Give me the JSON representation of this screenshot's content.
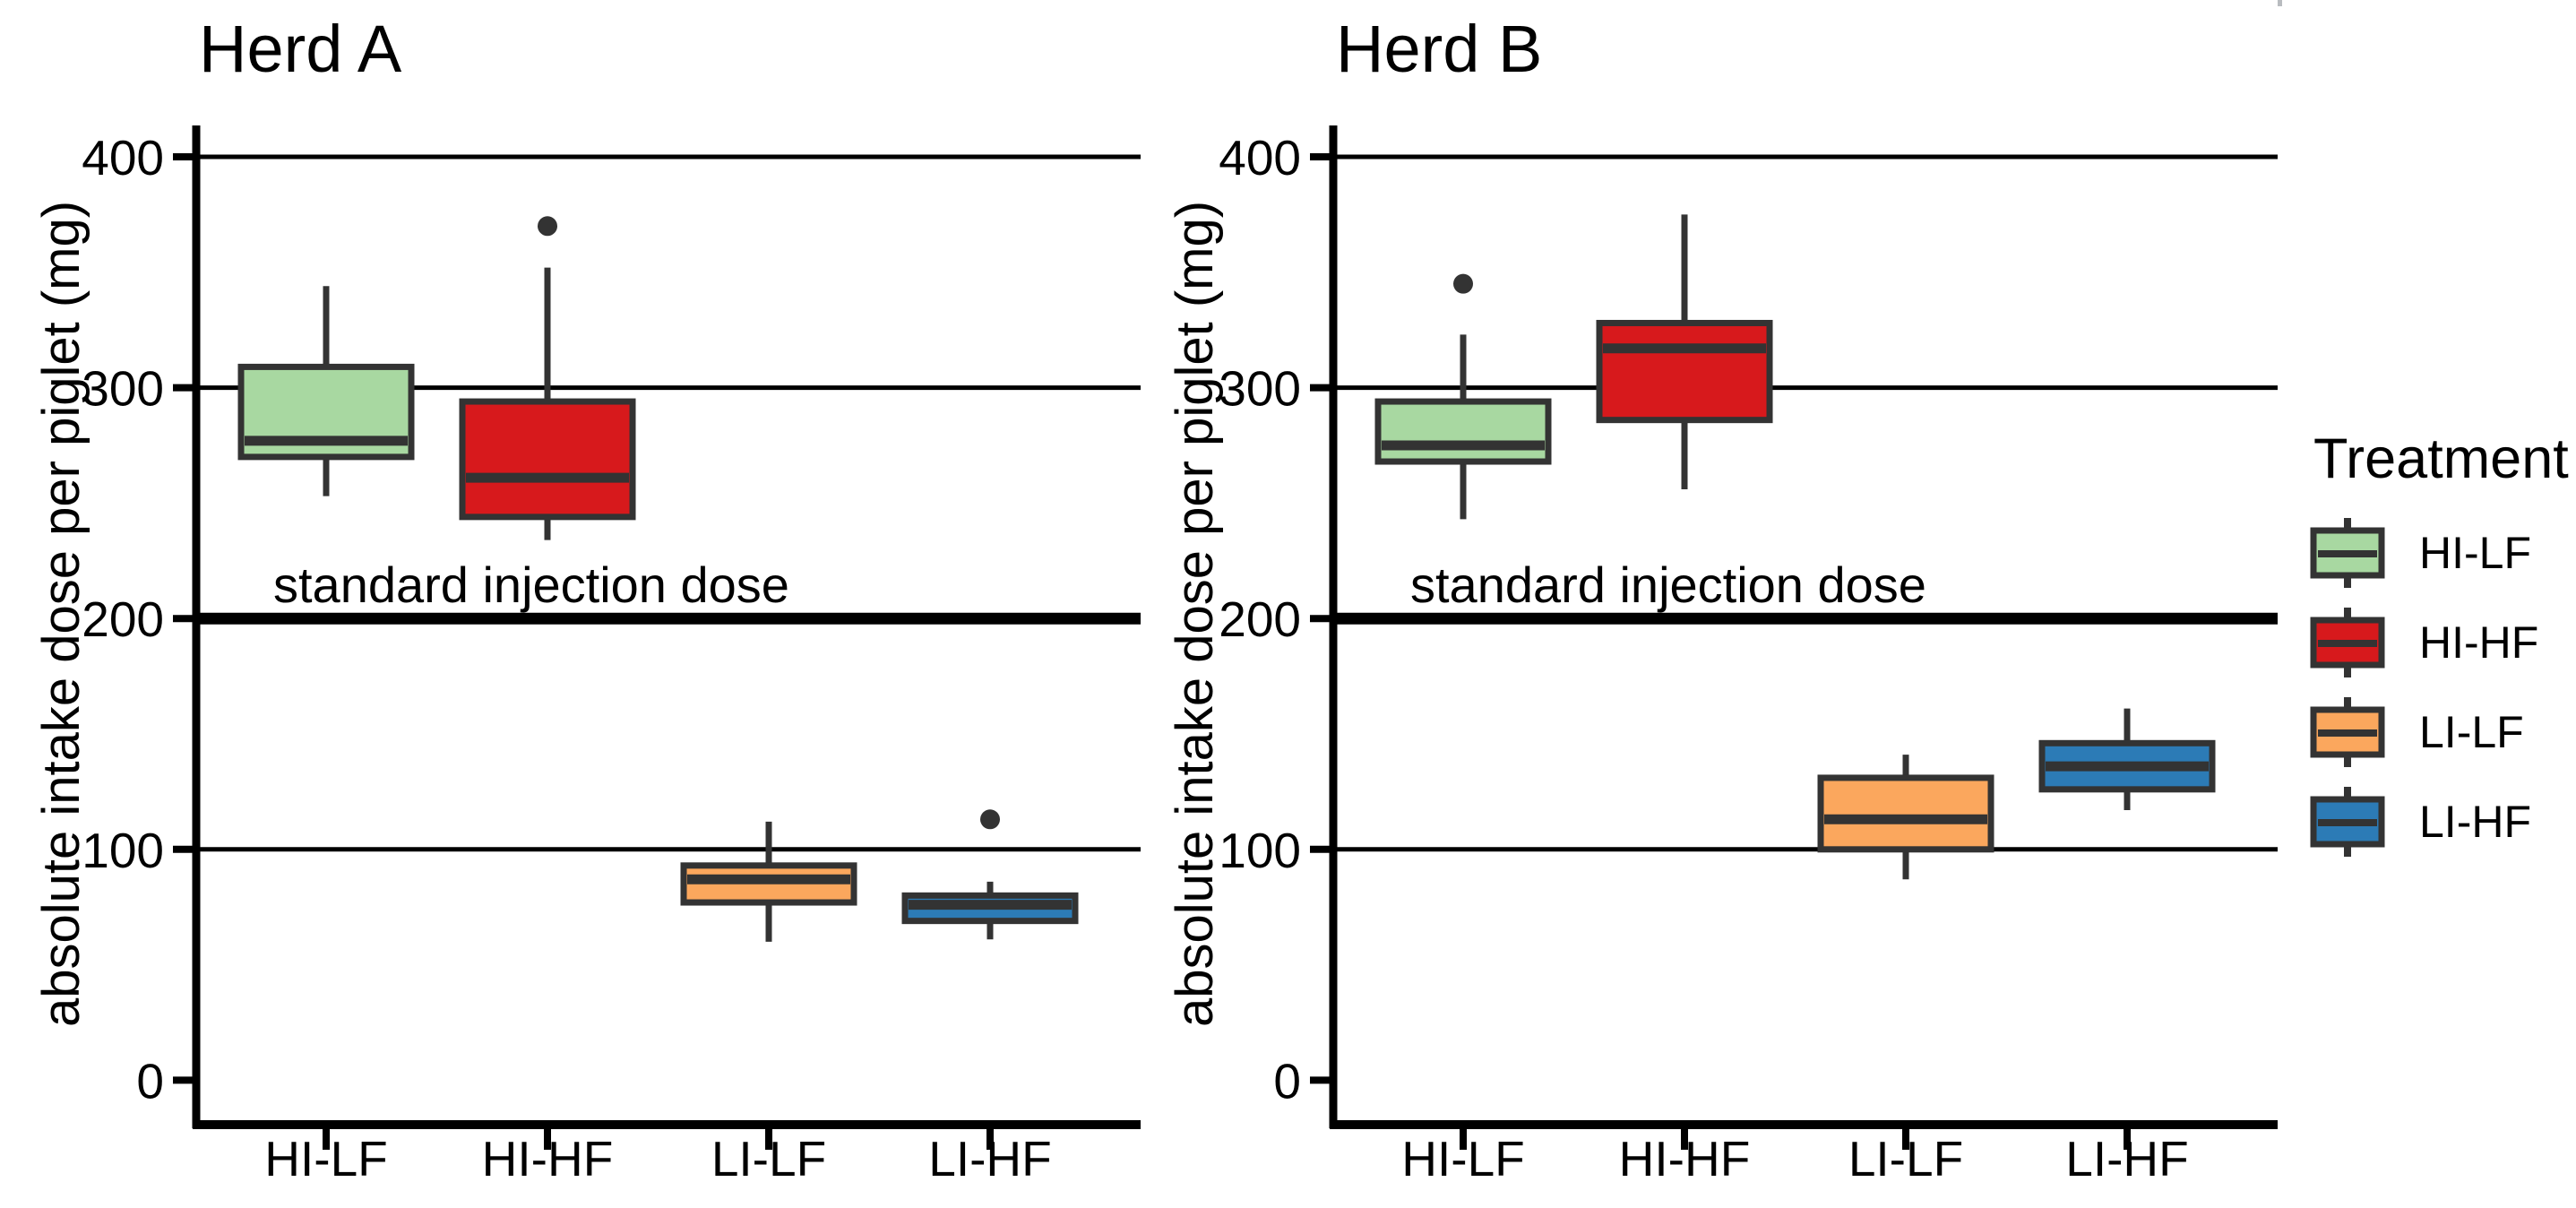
{
  "chart_data": {
    "type": "boxplot",
    "figure": "two-panel boxplot of absolute intake dose per piglet by treatment",
    "panels": [
      {
        "title": "Herd A",
        "ylabel": "absolute intake dose per piglet (mg)",
        "annotation": "standard injection dose",
        "categories": [
          "HI-LF",
          "HI-HF",
          "LI-LF",
          "LI-HF"
        ],
        "boxes": [
          {
            "category": "HI-LF",
            "whisker_low": 253,
            "q1": 270,
            "median": 277,
            "q3": 309,
            "whisker_high": 344,
            "outliers": []
          },
          {
            "category": "HI-HF",
            "whisker_low": 234,
            "q1": 244,
            "median": 261,
            "q3": 294,
            "whisker_high": 352,
            "outliers": [
              370
            ]
          },
          {
            "category": "LI-LF",
            "whisker_low": 60,
            "q1": 77,
            "median": 87,
            "q3": 93,
            "whisker_high": 112,
            "outliers": []
          },
          {
            "category": "LI-HF",
            "whisker_low": 61,
            "q1": 69,
            "median": 76,
            "q3": 80,
            "whisker_high": 86,
            "outliers": [
              113
            ]
          }
        ]
      },
      {
        "title": "Herd B",
        "ylabel": "absolute intake dose per piglet (mg)",
        "annotation": "standard injection dose",
        "categories": [
          "HI-LF",
          "HI-HF",
          "LI-LF",
          "LI-HF"
        ],
        "boxes": [
          {
            "category": "HI-LF",
            "whisker_low": 243,
            "q1": 268,
            "median": 275,
            "q3": 294,
            "whisker_high": 323,
            "outliers": [
              345
            ]
          },
          {
            "category": "HI-HF",
            "whisker_low": 256,
            "q1": 286,
            "median": 317,
            "q3": 328,
            "whisker_high": 375,
            "outliers": []
          },
          {
            "category": "LI-LF",
            "whisker_low": 87,
            "q1": 100,
            "median": 113,
            "q3": 131,
            "whisker_high": 141,
            "outliers": []
          },
          {
            "category": "LI-HF",
            "whisker_low": 117,
            "q1": 126,
            "median": 136,
            "q3": 146,
            "whisker_high": 161,
            "outliers": []
          }
        ]
      }
    ],
    "yaxis": {
      "label": "absolute intake dose per piglet (mg)",
      "ticks": [
        0,
        100,
        200,
        300,
        400
      ],
      "range": [
        -19,
        414
      ],
      "gridlines_at": [
        100,
        300,
        400
      ],
      "grid_color": "#000000"
    },
    "refline": {
      "value": 200,
      "label": "standard injection dose"
    },
    "legend": {
      "title": "Treatment",
      "position": "right-center",
      "items": [
        {
          "label": "HI-LF",
          "color": "#A8D8A1"
        },
        {
          "label": "HI-HF",
          "color": "#D7191C"
        },
        {
          "label": "LI-LF",
          "color": "#FBA75D"
        },
        {
          "label": "LI-HF",
          "color": "#2C7BB6"
        }
      ]
    },
    "colors": {
      "box_border": "#333333",
      "gridline": "#000000",
      "axis": "#000000",
      "text": "#000000",
      "background": "#ffffff"
    }
  }
}
